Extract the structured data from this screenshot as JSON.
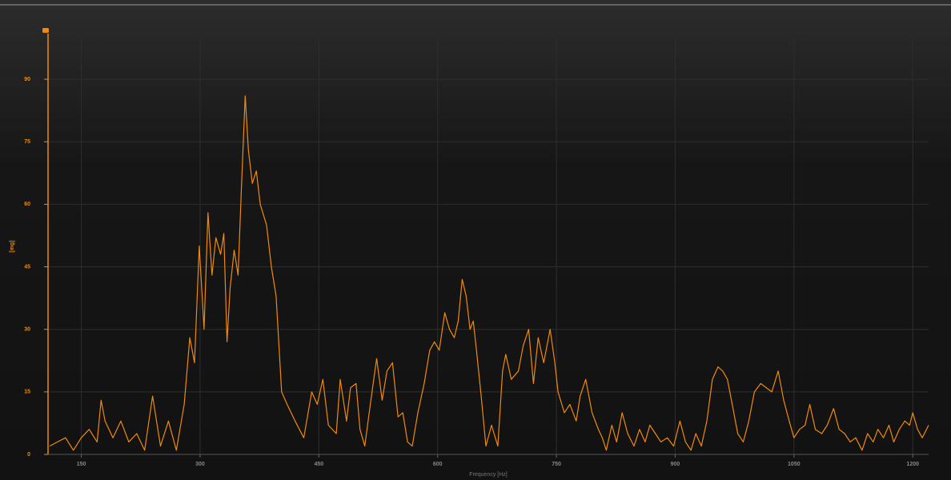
{
  "chart_data": {
    "type": "line",
    "x_label": "Frequency [Hz]",
    "y_label": "[mg]",
    "xlim": [
      108,
      1220
    ],
    "ylim": [
      0,
      100
    ],
    "xticks": [
      150,
      300,
      450,
      600,
      750,
      900,
      1050,
      1200
    ],
    "yticks": [
      0,
      15,
      30,
      45,
      60,
      75,
      90
    ],
    "grid": true,
    "series": [
      {
        "color": "#f08a0c",
        "x": [
          110,
          120,
          130,
          140,
          150,
          160,
          170,
          175,
          180,
          190,
          200,
          210,
          220,
          230,
          240,
          250,
          260,
          270,
          280,
          287,
          293,
          299,
          305,
          310,
          315,
          320,
          326,
          330,
          334,
          338,
          343,
          348,
          352,
          357,
          361,
          366,
          371,
          376,
          384,
          390,
          396,
          403,
          410,
          420,
          431,
          441,
          448,
          455,
          462,
          472,
          477,
          485,
          490,
          497,
          502,
          508,
          515,
          523,
          530,
          536,
          543,
          550,
          556,
          562,
          568,
          575,
          583,
          590,
          596,
          602,
          609,
          615,
          621,
          626,
          631,
          636,
          641,
          645,
          649,
          655,
          661,
          668,
          676,
          682,
          686,
          693,
          702,
          708,
          715,
          721,
          727,
          734,
          742,
          748,
          752,
          760,
          767,
          775,
          780,
          787,
          795,
          803,
          808,
          813,
          820,
          826,
          833,
          840,
          848,
          855,
          862,
          868,
          875,
          882,
          890,
          898,
          906,
          913,
          920,
          926,
          933,
          940,
          947,
          954,
          960,
          966,
          972,
          979,
          986,
          993,
          1000,
          1008,
          1015,
          1022,
          1030,
          1037,
          1044,
          1050,
          1057,
          1064,
          1070,
          1077,
          1085,
          1092,
          1100,
          1107,
          1114,
          1121,
          1128,
          1136,
          1143,
          1150,
          1156,
          1163,
          1170,
          1176,
          1183,
          1190,
          1196,
          1200,
          1206,
          1212,
          1220
        ],
        "values": [
          2,
          3,
          4,
          1,
          4,
          6,
          3,
          13,
          8,
          4,
          8,
          3,
          5,
          1,
          14,
          2,
          8,
          1,
          12,
          28,
          22,
          50,
          30,
          58,
          43,
          52,
          48,
          53,
          27,
          40,
          49,
          43,
          63,
          86,
          73,
          65,
          68,
          60,
          55,
          45,
          38,
          15,
          12,
          8,
          4,
          15,
          12,
          18,
          7,
          5,
          18,
          8,
          16,
          17,
          6,
          2,
          12,
          23,
          13,
          20,
          22,
          9,
          10,
          3,
          2,
          10,
          17,
          25,
          27,
          25,
          34,
          30,
          28,
          32,
          42,
          38,
          30,
          32,
          25,
          14,
          2,
          7,
          2,
          20,
          24,
          18,
          20,
          26,
          30,
          17,
          28,
          22,
          30,
          22,
          15,
          10,
          12,
          8,
          14,
          18,
          10,
          6,
          4,
          1,
          7,
          3,
          10,
          5,
          2,
          6,
          3,
          7,
          5,
          3,
          4,
          2,
          8,
          3,
          1,
          5,
          2,
          8,
          18,
          21,
          20,
          18,
          12,
          5,
          3,
          8,
          15,
          17,
          16,
          15,
          20,
          13,
          8,
          4,
          6,
          7,
          12,
          6,
          5,
          7,
          11,
          6,
          5,
          3,
          4,
          1,
          5,
          3,
          6,
          4,
          7,
          3,
          6,
          8,
          7,
          10,
          6,
          4,
          7
        ]
      }
    ]
  }
}
